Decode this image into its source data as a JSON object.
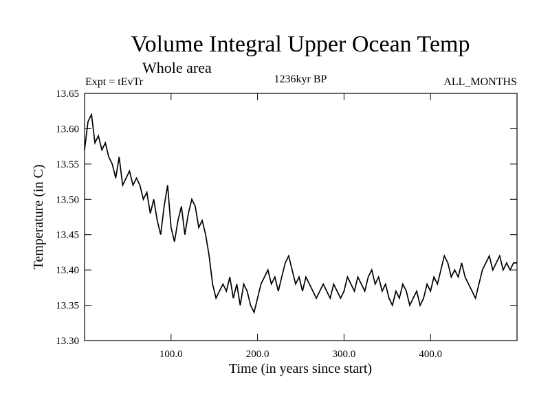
{
  "chart_data": {
    "type": "line",
    "title": "Volume Integral Upper Ocean Temp",
    "subtitle": "Whole area",
    "left_label": "Expt = tEvTr",
    "center_label": "1236kyr BP",
    "right_label": "ALL_MONTHS",
    "xlabel": "Time (in years since start)",
    "ylabel": "Temperature (in C)",
    "xlim": [
      0,
      500
    ],
    "ylim": [
      13.3,
      13.65
    ],
    "x_ticks": [
      100,
      200,
      300,
      400
    ],
    "x_tick_labels": [
      "100.0",
      "200.0",
      "300.0",
      "400.0"
    ],
    "y_ticks": [
      13.3,
      13.35,
      13.4,
      13.45,
      13.5,
      13.55,
      13.6,
      13.65
    ],
    "y_tick_labels": [
      "13.30",
      "13.35",
      "13.40",
      "13.45",
      "13.50",
      "13.55",
      "13.60",
      "13.65"
    ],
    "grid": false,
    "series": [
      {
        "name": "Temperature",
        "color": "#000000",
        "x": [
          0,
          4,
          8,
          12,
          16,
          20,
          24,
          28,
          32,
          36,
          40,
          44,
          48,
          52,
          56,
          60,
          64,
          68,
          72,
          76,
          80,
          84,
          88,
          92,
          96,
          100,
          104,
          108,
          112,
          116,
          120,
          124,
          128,
          132,
          136,
          140,
          144,
          148,
          152,
          156,
          160,
          164,
          168,
          172,
          176,
          180,
          184,
          188,
          192,
          196,
          200,
          204,
          208,
          212,
          216,
          220,
          224,
          228,
          232,
          236,
          240,
          244,
          248,
          252,
          256,
          260,
          264,
          268,
          272,
          276,
          280,
          284,
          288,
          292,
          296,
          300,
          304,
          308,
          312,
          316,
          320,
          324,
          328,
          332,
          336,
          340,
          344,
          348,
          352,
          356,
          360,
          364,
          368,
          372,
          376,
          380,
          384,
          388,
          392,
          396,
          400,
          404,
          408,
          412,
          416,
          420,
          424,
          428,
          432,
          436,
          440,
          444,
          448,
          452,
          456,
          460,
          464,
          468,
          472,
          476,
          480,
          484,
          488,
          492,
          496,
          500
        ],
        "values": [
          13.57,
          13.61,
          13.62,
          13.58,
          13.59,
          13.57,
          13.58,
          13.56,
          13.55,
          13.53,
          13.56,
          13.52,
          13.53,
          13.54,
          13.52,
          13.53,
          13.52,
          13.5,
          13.51,
          13.48,
          13.5,
          13.47,
          13.45,
          13.49,
          13.52,
          13.46,
          13.44,
          13.47,
          13.49,
          13.45,
          13.48,
          13.5,
          13.49,
          13.46,
          13.47,
          13.45,
          13.42,
          13.38,
          13.36,
          13.37,
          13.38,
          13.37,
          13.39,
          13.36,
          13.38,
          13.35,
          13.38,
          13.37,
          13.35,
          13.34,
          13.36,
          13.38,
          13.39,
          13.4,
          13.38,
          13.39,
          13.37,
          13.39,
          13.41,
          13.42,
          13.4,
          13.38,
          13.39,
          13.37,
          13.39,
          13.38,
          13.37,
          13.36,
          13.37,
          13.38,
          13.37,
          13.36,
          13.38,
          13.37,
          13.36,
          13.37,
          13.39,
          13.38,
          13.37,
          13.39,
          13.38,
          13.37,
          13.39,
          13.4,
          13.38,
          13.39,
          13.37,
          13.38,
          13.36,
          13.35,
          13.37,
          13.36,
          13.38,
          13.37,
          13.35,
          13.36,
          13.37,
          13.35,
          13.36,
          13.38,
          13.37,
          13.39,
          13.38,
          13.4,
          13.42,
          13.41,
          13.39,
          13.4,
          13.39,
          13.41,
          13.39,
          13.38,
          13.37,
          13.36,
          13.38,
          13.4,
          13.41,
          13.42,
          13.4,
          13.41,
          13.42,
          13.4,
          13.41,
          13.4,
          13.41,
          13.41
        ]
      }
    ]
  }
}
